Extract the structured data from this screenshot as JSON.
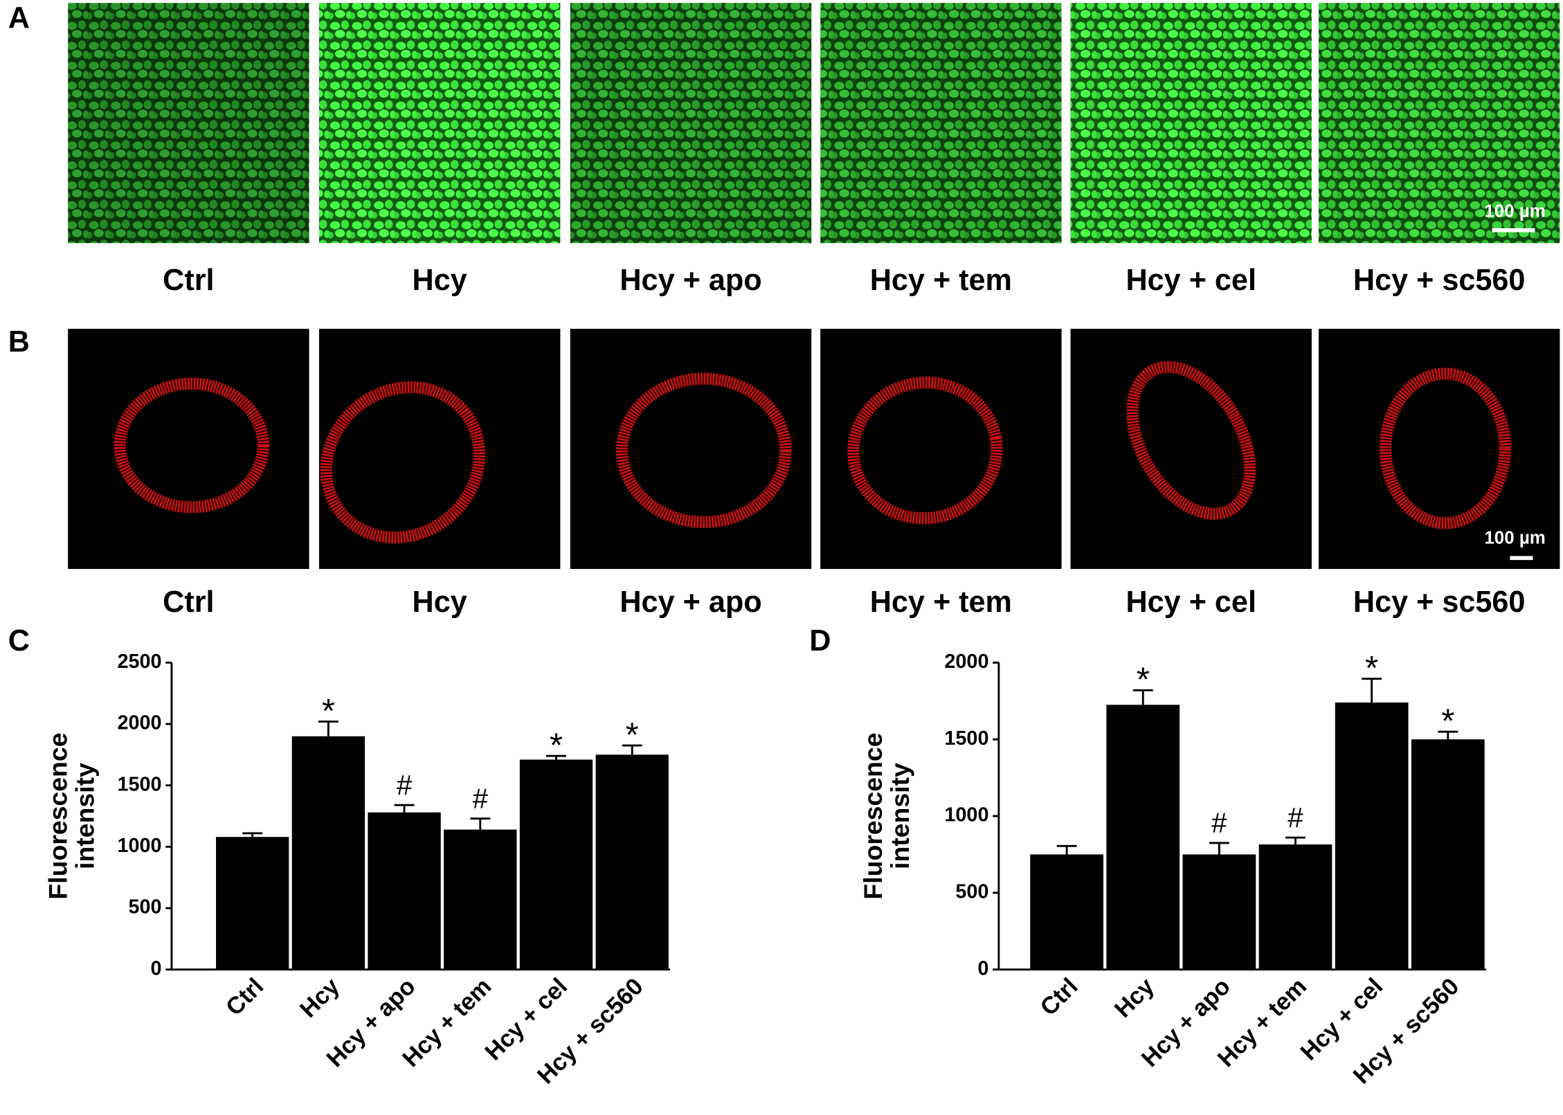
{
  "panels": {
    "A": {
      "label": "A",
      "images": [
        "Ctrl",
        "Hcy",
        "Hcy + apo",
        "Hcy + tem",
        "Hcy + cel",
        "Hcy + sc560"
      ],
      "scale_bar": "100 µm"
    },
    "B": {
      "label": "B",
      "images": [
        "Ctrl",
        "Hcy",
        "Hcy + apo",
        "Hcy + tem",
        "Hcy + cel",
        "Hcy + sc560"
      ],
      "scale_bar": "100 µm"
    }
  },
  "chart_data": [
    {
      "type": "bar",
      "panel": "C",
      "y_label": [
        "Fluorescence",
        "intensity"
      ],
      "categories": [
        "Ctrl",
        "Hcy",
        "Hcy + apo",
        "Hcy + tem",
        "Hcy + cel",
        "Hcy + sc560"
      ],
      "values": [
        1080,
        1900,
        1280,
        1140,
        1710,
        1750
      ],
      "errors": [
        30,
        120,
        60,
        90,
        30,
        75
      ],
      "annotations": [
        null,
        "*",
        "#",
        "#",
        "*",
        "*"
      ],
      "color": "#000000",
      "ylim": [
        0,
        2500
      ],
      "yticks": [
        0,
        500,
        1000,
        1500,
        2000,
        2500
      ]
    },
    {
      "type": "bar",
      "panel": "D",
      "y_label": [
        "Fluorescence",
        "intensity"
      ],
      "categories": [
        "Ctrl",
        "Hcy",
        "Hcy + apo",
        "Hcy + tem",
        "Hcy + cel",
        "Hcy + sc560"
      ],
      "values": [
        750,
        1725,
        750,
        815,
        1740,
        1500
      ],
      "errors": [
        55,
        95,
        75,
        45,
        155,
        50
      ],
      "annotations": [
        null,
        "*",
        "#",
        "#",
        "*",
        "*"
      ],
      "color": "#000000",
      "ylim": [
        0,
        2000
      ],
      "yticks": [
        0,
        500,
        1000,
        1500,
        2000
      ]
    }
  ]
}
